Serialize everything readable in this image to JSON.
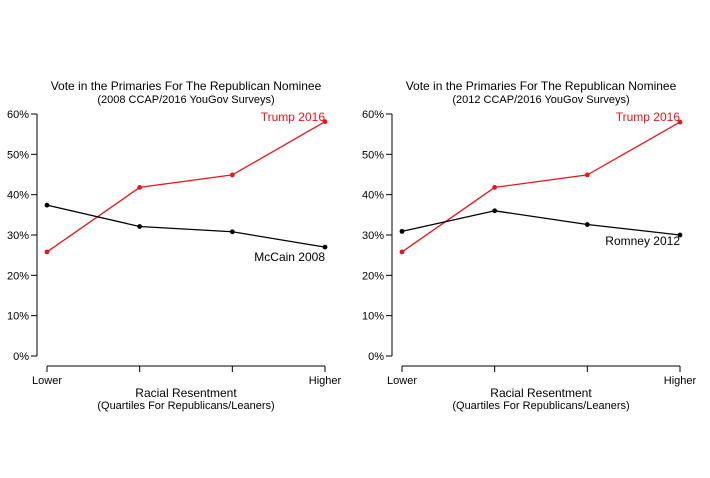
{
  "chart_data": [
    {
      "type": "line",
      "title": "Vote in the Primaries For The Republican Nominee",
      "subtitle": "(2008 CCAP/2016 YouGov Surveys)",
      "xlabel": "Racial Resentment",
      "xlabel_sub": "(Quartiles For Republicans/Leaners)",
      "x_tick_labels": [
        "Lower",
        "",
        "",
        "Higher"
      ],
      "categories": [
        1,
        2,
        3,
        4
      ],
      "ylim": [
        0,
        60
      ],
      "y_ticks": [
        0,
        10,
        20,
        30,
        40,
        50,
        60
      ],
      "y_tick_labels": [
        "0%",
        "10%",
        "20%",
        "30%",
        "40%",
        "50%",
        "60%"
      ],
      "grid": false,
      "series": [
        {
          "name": "Trump 2016",
          "color": "#e8161b",
          "values": [
            25.8,
            41.8,
            44.9,
            58.1
          ]
        },
        {
          "name": "McCain 2008",
          "color": "#000000",
          "values": [
            37.4,
            32.1,
            30.8,
            27.0
          ]
        }
      ]
    },
    {
      "type": "line",
      "title": "Vote in the Primaries For The Republican Nominee",
      "subtitle": "(2012 CCAP/2016 YouGov Surveys)",
      "xlabel": "Racial Resentment",
      "xlabel_sub": "(Quartiles For Republicans/Leaners)",
      "x_tick_labels": [
        "Lower",
        "",
        "",
        "Higher"
      ],
      "categories": [
        1,
        2,
        3,
        4
      ],
      "ylim": [
        0,
        60
      ],
      "y_ticks": [
        0,
        10,
        20,
        30,
        40,
        50,
        60
      ],
      "y_tick_labels": [
        "0%",
        "10%",
        "20%",
        "30%",
        "40%",
        "50%",
        "60%"
      ],
      "grid": false,
      "series": [
        {
          "name": "Trump 2016",
          "color": "#e8161b",
          "values": [
            25.8,
            41.8,
            44.9,
            58.0
          ]
        },
        {
          "name": "Romney 2012",
          "color": "#000000",
          "values": [
            30.9,
            36.0,
            32.6,
            30.0
          ]
        }
      ]
    }
  ]
}
